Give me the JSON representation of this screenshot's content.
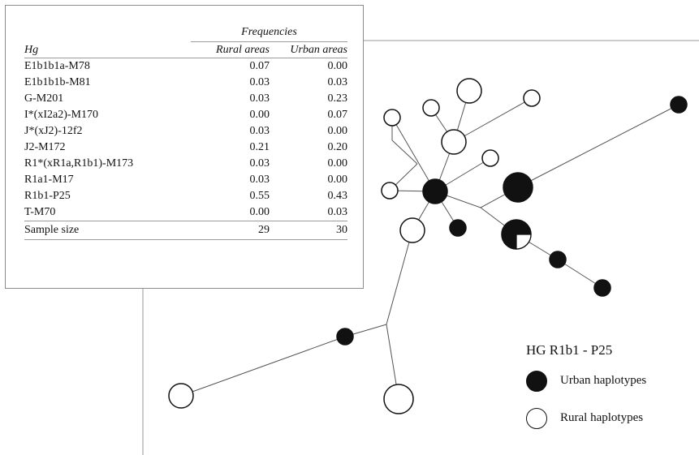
{
  "table": {
    "group_header": "Frequencies",
    "col_hg": "Hg",
    "col_rural": "Rural areas",
    "col_urban": "Urban areas",
    "rows": [
      {
        "hg": "E1b1b1a-M78",
        "rural": "0.07",
        "urban": "0.00"
      },
      {
        "hg": "E1b1b1b-M81",
        "rural": "0.03",
        "urban": "0.03"
      },
      {
        "hg": "G-M201",
        "rural": "0.03",
        "urban": "0.23"
      },
      {
        "hg": "I*(xI2a2)-M170",
        "rural": "0.00",
        "urban": "0.07"
      },
      {
        "hg": "J*(xJ2)-12f2",
        "rural": "0.03",
        "urban": "0.00"
      },
      {
        "hg": "J2-M172",
        "rural": "0.21",
        "urban": "0.20"
      },
      {
        "hg": "R1*(xR1a,R1b1)-M173",
        "rural": "0.03",
        "urban": "0.00"
      },
      {
        "hg": "R1a1-M17",
        "rural": "0.03",
        "urban": "0.00"
      },
      {
        "hg": "R1b1-P25",
        "rural": "0.55",
        "urban": "0.43"
      },
      {
        "hg": "T-M70",
        "rural": "0.00",
        "urban": "0.03"
      }
    ],
    "sample_label": "Sample size",
    "sample_rural": "29",
    "sample_urban": "30"
  },
  "network": {
    "nodes": [
      {
        "id": "hub",
        "type": "urban"
      },
      {
        "id": "hub-w",
        "type": "rural"
      },
      {
        "id": "below-hub",
        "type": "rural"
      },
      {
        "id": "big-top",
        "type": "rural"
      },
      {
        "id": "top-small-1",
        "type": "rural"
      },
      {
        "id": "top-small-2",
        "type": "rural"
      },
      {
        "id": "top-right-small",
        "type": "rural"
      },
      {
        "id": "mid-small",
        "type": "rural"
      },
      {
        "id": "center-mid",
        "type": "rural"
      },
      {
        "id": "left-top",
        "type": "rural"
      },
      {
        "id": "small-black-below",
        "type": "urban"
      },
      {
        "id": "big-black",
        "type": "urban"
      },
      {
        "id": "far-black",
        "type": "urban"
      },
      {
        "id": "pie",
        "type": "mixed",
        "urban_fraction": 0.75
      },
      {
        "id": "pie-child-1",
        "type": "urban"
      },
      {
        "id": "pie-child-2",
        "type": "urban"
      },
      {
        "id": "lower-black",
        "type": "urban"
      },
      {
        "id": "far-left-white",
        "type": "rural"
      },
      {
        "id": "bottom-white",
        "type": "rural"
      }
    ]
  },
  "legend": {
    "title": "HG R1b1 - P25",
    "urban_label": "Urban haplotypes",
    "rural_label": "Rural haplotypes"
  }
}
